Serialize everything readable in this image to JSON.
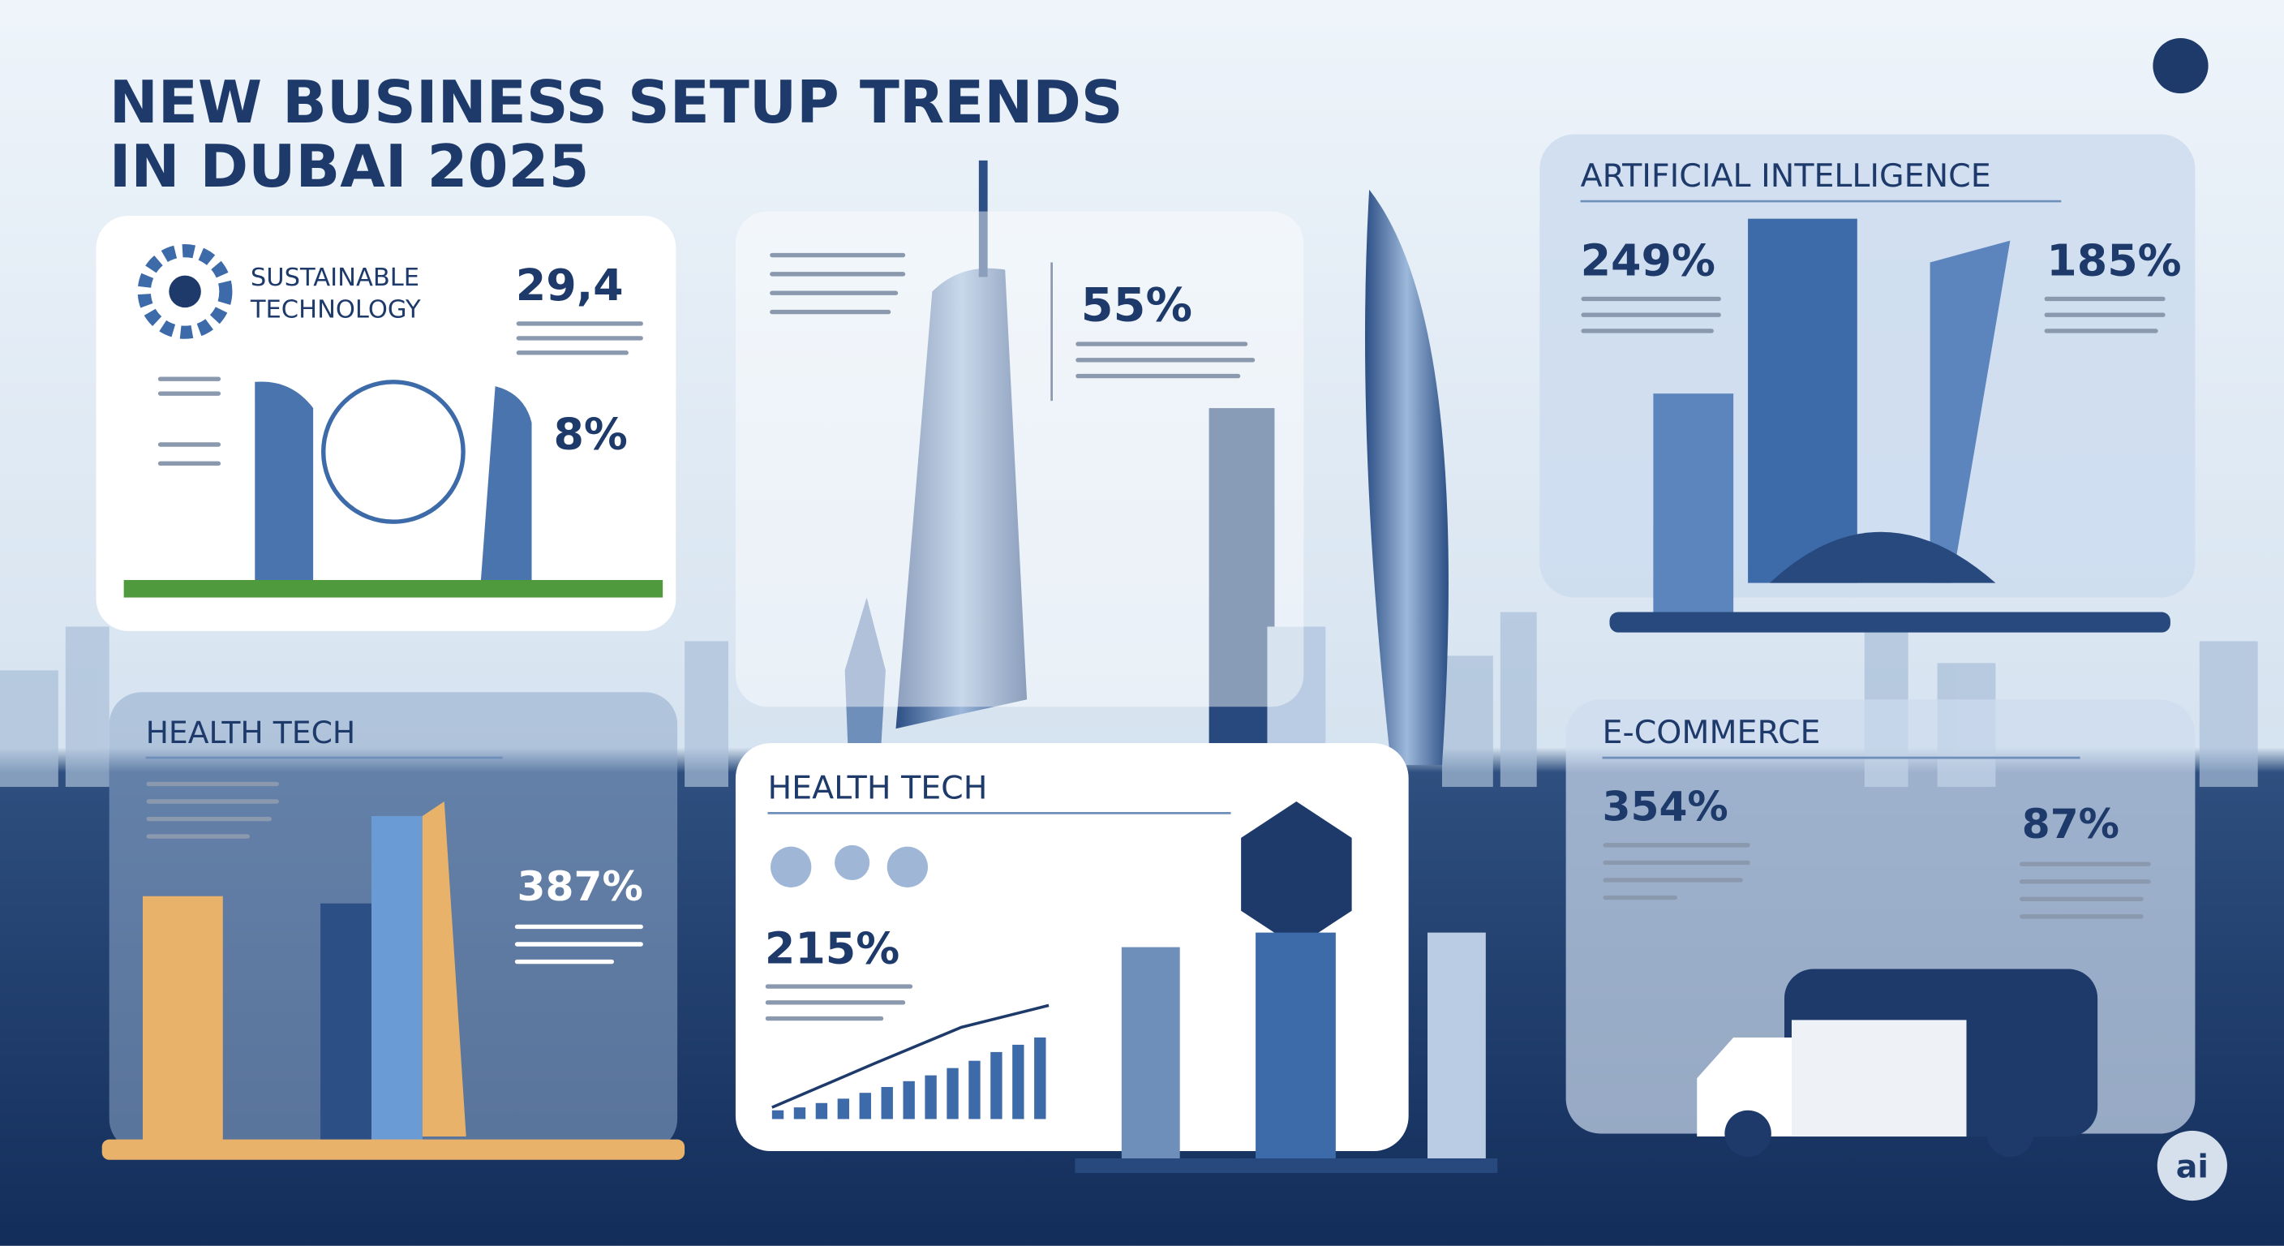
{
  "header": {
    "title_line1": "NEW BUSINESS SETUP TRENDS",
    "title_line2": "IN DUBAI 2025"
  },
  "panels": [
    {
      "title_line1": "SUSTAINABLE",
      "title_line2": "TECHNOLOGY",
      "stats": [
        "29,4",
        "8%"
      ]
    },
    {
      "stats": [
        "55%"
      ]
    },
    {
      "title": "ARTIFICIAL INTELLIGENCE",
      "stats": [
        "249%",
        "185%"
      ]
    },
    {
      "title": "HEALTH TECH",
      "stats": [
        "387%"
      ]
    },
    {
      "title": "HEALTH TECH",
      "stats": [
        "215%"
      ]
    },
    {
      "title": "E-COMMERCE",
      "stats": [
        "354%",
        "87%"
      ]
    }
  ],
  "badge": "ai"
}
